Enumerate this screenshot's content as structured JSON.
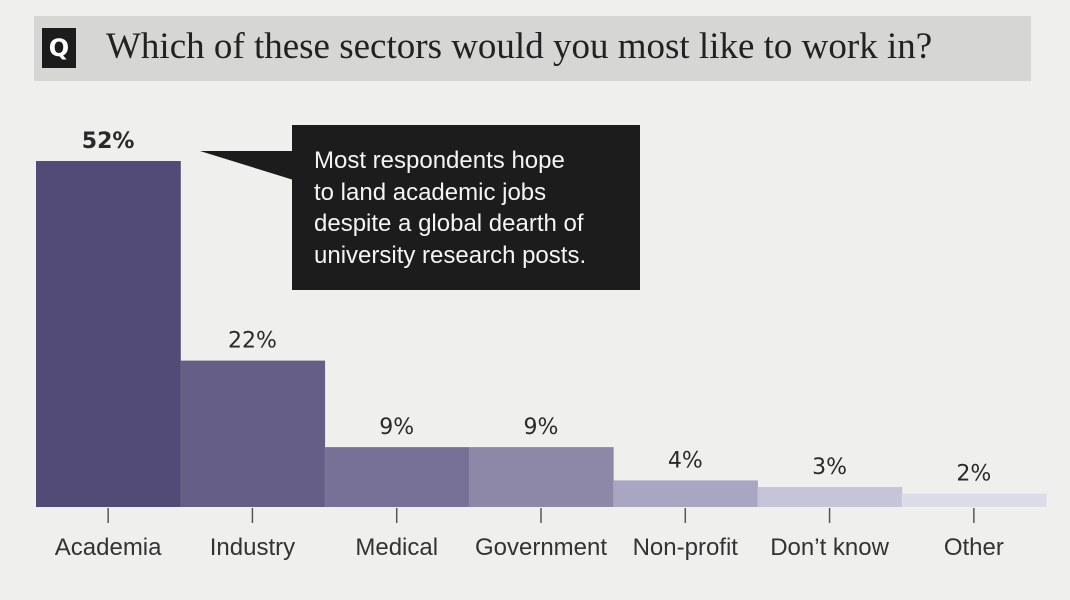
{
  "question": {
    "badge": "Q",
    "text": "Which of these sectors would you most like to work in?"
  },
  "callout": {
    "lines": [
      "Most respondents hope",
      "to land academic jobs",
      "despite a global dearth of",
      "university research posts."
    ]
  },
  "chart_data": {
    "type": "bar",
    "title": "Which of these sectors would you most like to work in?",
    "categories": [
      "Academia",
      "Industry",
      "Medical",
      "Government",
      "Non-profit",
      "Don’t know",
      "Other"
    ],
    "values": [
      52,
      22,
      9,
      9,
      4,
      3,
      2
    ],
    "value_labels": [
      "52%",
      "22%",
      "9%",
      "9%",
      "4%",
      "3%",
      "2%"
    ],
    "unit": "%",
    "ylim": [
      0,
      52
    ],
    "grid": false,
    "colors": [
      "#524b78",
      "#655f88",
      "#777197",
      "#8d88a8",
      "#a9a6c2",
      "#c6c4d8",
      "#dcdbe8"
    ],
    "highlight_label": "52%"
  }
}
